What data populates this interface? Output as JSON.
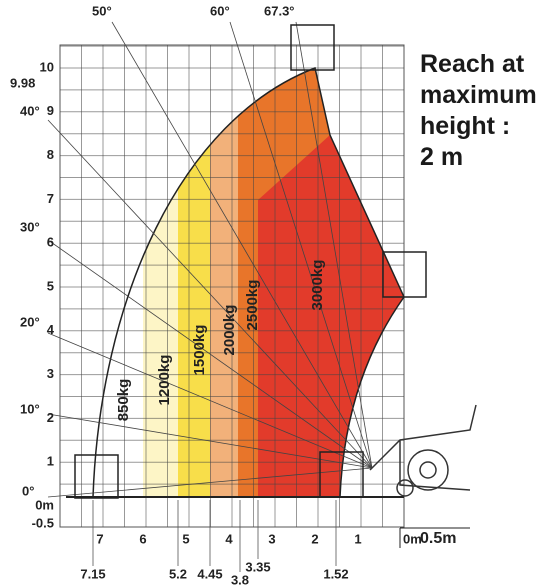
{
  "title_lines": [
    "Reach at",
    "maximum",
    "height :",
    "2 m"
  ],
  "angles": [
    "0°",
    "10°",
    "20°",
    "30°",
    "40°",
    "50°",
    "60°",
    "67.3°"
  ],
  "y_ticks": [
    "-0.5",
    "0m",
    "1",
    "2",
    "3",
    "4",
    "5",
    "6",
    "7",
    "8",
    "9",
    "10"
  ],
  "y_special": "9.98",
  "x_ticks": [
    "7",
    "6",
    "5",
    "4",
    "3",
    "2",
    "1",
    "0m"
  ],
  "scale_label": "0.5m",
  "x_marks": [
    "7.15",
    "5.2",
    "4.45",
    "3.8",
    "3.35",
    "1.52"
  ],
  "loads": [
    "850kg",
    "1200kg",
    "1500kg",
    "2000kg",
    "2500kg",
    "3000kg"
  ]
}
